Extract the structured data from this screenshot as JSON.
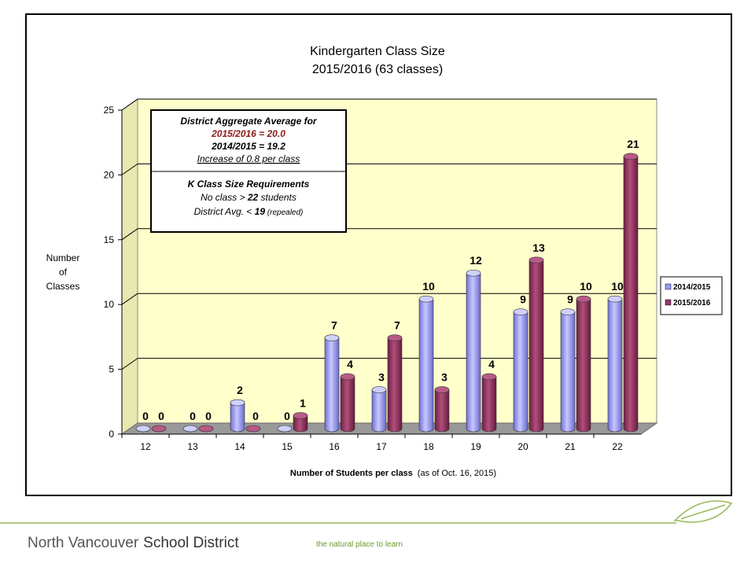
{
  "chart_data": {
    "type": "bar3d",
    "title": "Kindergarten Class Size",
    "subtitle": "2015/2016 (63 classes)",
    "ylabel": [
      "Number",
      "of",
      "Classes"
    ],
    "xlabel": "Number of Students per class",
    "xlabel_note": "(as of Oct. 16, 2015)",
    "categories": [
      "12",
      "13",
      "14",
      "15",
      "16",
      "17",
      "18",
      "19",
      "20",
      "21",
      "22"
    ],
    "series": [
      {
        "name": "2014/2015",
        "color": "#9999ff",
        "values": [
          0,
          0,
          2,
          0,
          7,
          3,
          10,
          12,
          9,
          9,
          10
        ]
      },
      {
        "name": "2015/2016",
        "color": "#993366",
        "values": [
          0,
          0,
          0,
          1,
          4,
          7,
          3,
          4,
          13,
          10,
          21
        ]
      }
    ],
    "ylim": [
      0,
      25
    ],
    "yticks": [
      0,
      5,
      10,
      15,
      20,
      25
    ],
    "grid": true,
    "legend": "right",
    "annotation": {
      "line1": "District Aggregate Average for",
      "line2": "2015/2016 = 20.0",
      "line3": "2014/2015 = 19.2",
      "line4": "Increase of 0.8 per class",
      "line5": "K Class Size Requirements",
      "line6": [
        "No class > ",
        "22",
        " students"
      ],
      "line7": [
        "District Avg. < ",
        "19",
        " (repealed)"
      ]
    }
  },
  "footer": {
    "org_light": "North Vancouver",
    "org_bold": "School District",
    "tagline": "the natural place to learn"
  }
}
